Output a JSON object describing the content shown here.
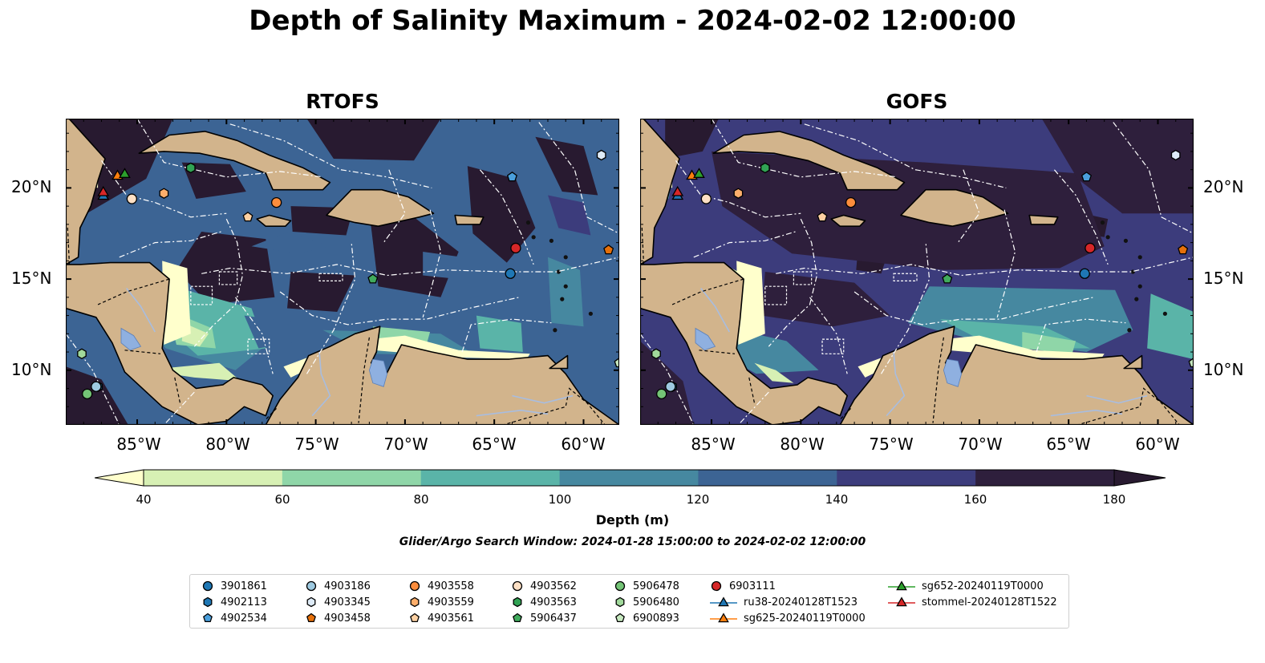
{
  "title": "Depth of Salinity Maximum - 2024-02-02 12:00:00",
  "panels": [
    {
      "id": "rtofs",
      "title": "RTOFS",
      "lat_labels_side": "left"
    },
    {
      "id": "gofs",
      "title": "GOFS",
      "lat_labels_side": "right"
    }
  ],
  "map": {
    "extent": {
      "lon_min": -89,
      "lon_max": -58,
      "lat_min": 7,
      "lat_max": 23.8
    },
    "lon_ticks": [
      -85,
      -80,
      -75,
      -70,
      -65,
      -60
    ],
    "lon_tick_labels": [
      "85°W",
      "80°W",
      "75°W",
      "70°W",
      "65°W",
      "60°W"
    ],
    "lat_ticks": [
      10,
      15,
      20
    ],
    "lat_tick_labels": [
      "10°N",
      "15°N",
      "20°N"
    ],
    "colors": {
      "land": "#d2b48c",
      "lake": "#8fb0e0",
      "river": "#a8bde0",
      "coast": "#000000",
      "eez": "#ffffff"
    }
  },
  "colorbar": {
    "label": "Depth (m)",
    "ticks": [
      40,
      60,
      80,
      100,
      120,
      140,
      160,
      180
    ],
    "tick_labels": [
      "40",
      "60",
      "80",
      "100",
      "120",
      "140",
      "160",
      "180"
    ],
    "colors": [
      "#ffffcc",
      "#d7f0b4",
      "#8fd6a8",
      "#5ab4a8",
      "#4688a0",
      "#3c6494",
      "#3c3c7c",
      "#2e1f3c",
      "#281a30"
    ],
    "extend": "both"
  },
  "search_window": "Glider/Argo Search Window: 2024-01-28 15:00:00 to 2024-02-02 12:00:00",
  "platforms": [
    {
      "name": "3901861",
      "marker": "circle",
      "color": "#1f77b4",
      "lon": -64.1,
      "lat": 15.3
    },
    {
      "name": "4902113",
      "marker": "hexagon",
      "color": "#1f77b4",
      "lon": -87.2,
      "lat": 9.1
    },
    {
      "name": "4902534",
      "marker": "pentagon",
      "color": "#4a9fdc",
      "lon": -64.0,
      "lat": 20.6
    },
    {
      "name": "4903186",
      "marker": "circle",
      "color": "#9ecae1",
      "lon": -87.3,
      "lat": 9.1
    },
    {
      "name": "4903345",
      "marker": "hexagon",
      "color": "#deebf7",
      "lon": -59.0,
      "lat": 21.8
    },
    {
      "name": "4903458",
      "marker": "pentagon",
      "color": "#e6700a",
      "lon": -58.6,
      "lat": 16.6
    },
    {
      "name": "4903558",
      "marker": "circle",
      "color": "#fd8d3c",
      "lon": -77.2,
      "lat": 19.2
    },
    {
      "name": "4903559",
      "marker": "hexagon",
      "color": "#fdae6b",
      "lon": -83.5,
      "lat": 19.7
    },
    {
      "name": "4903561",
      "marker": "pentagon",
      "color": "#fdd0a2",
      "lon": -78.8,
      "lat": 18.4
    },
    {
      "name": "4903562",
      "marker": "circle",
      "color": "#fde0c5",
      "lon": -85.3,
      "lat": 19.4
    },
    {
      "name": "4903563",
      "marker": "hexagon",
      "color": "#31a354",
      "lon": -82.0,
      "lat": 21.1
    },
    {
      "name": "5906437",
      "marker": "pentagon",
      "color": "#41ab5d",
      "lon": -71.8,
      "lat": 15.0
    },
    {
      "name": "5906478",
      "marker": "circle",
      "color": "#74c476",
      "lon": -87.8,
      "lat": 8.7
    },
    {
      "name": "5906480",
      "marker": "hexagon",
      "color": "#a1d99b",
      "lon": -88.1,
      "lat": 10.9
    },
    {
      "name": "6900893",
      "marker": "pentagon",
      "color": "#c7e9c0",
      "lon": -58.0,
      "lat": 10.4
    },
    {
      "name": "6903111",
      "marker": "circle",
      "color": "#d62728",
      "lon": -63.8,
      "lat": 16.7
    },
    {
      "name": "ru38-20240128T1523",
      "marker": "triangle",
      "color": "#1f77b4",
      "lon": -86.9,
      "lat": 19.6,
      "line": true
    },
    {
      "name": "sg625-20240119T0000",
      "marker": "triangle",
      "color": "#ff7f0e",
      "lon": -86.1,
      "lat": 20.7,
      "line": true
    },
    {
      "name": "sg652-20240119T0000",
      "marker": "triangle",
      "color": "#2ca02c",
      "lon": -85.7,
      "lat": 20.8,
      "line": true
    },
    {
      "name": "stommel-20240128T1522",
      "marker": "triangle",
      "color": "#d62728",
      "lon": -86.9,
      "lat": 19.8,
      "line": true
    }
  ]
}
